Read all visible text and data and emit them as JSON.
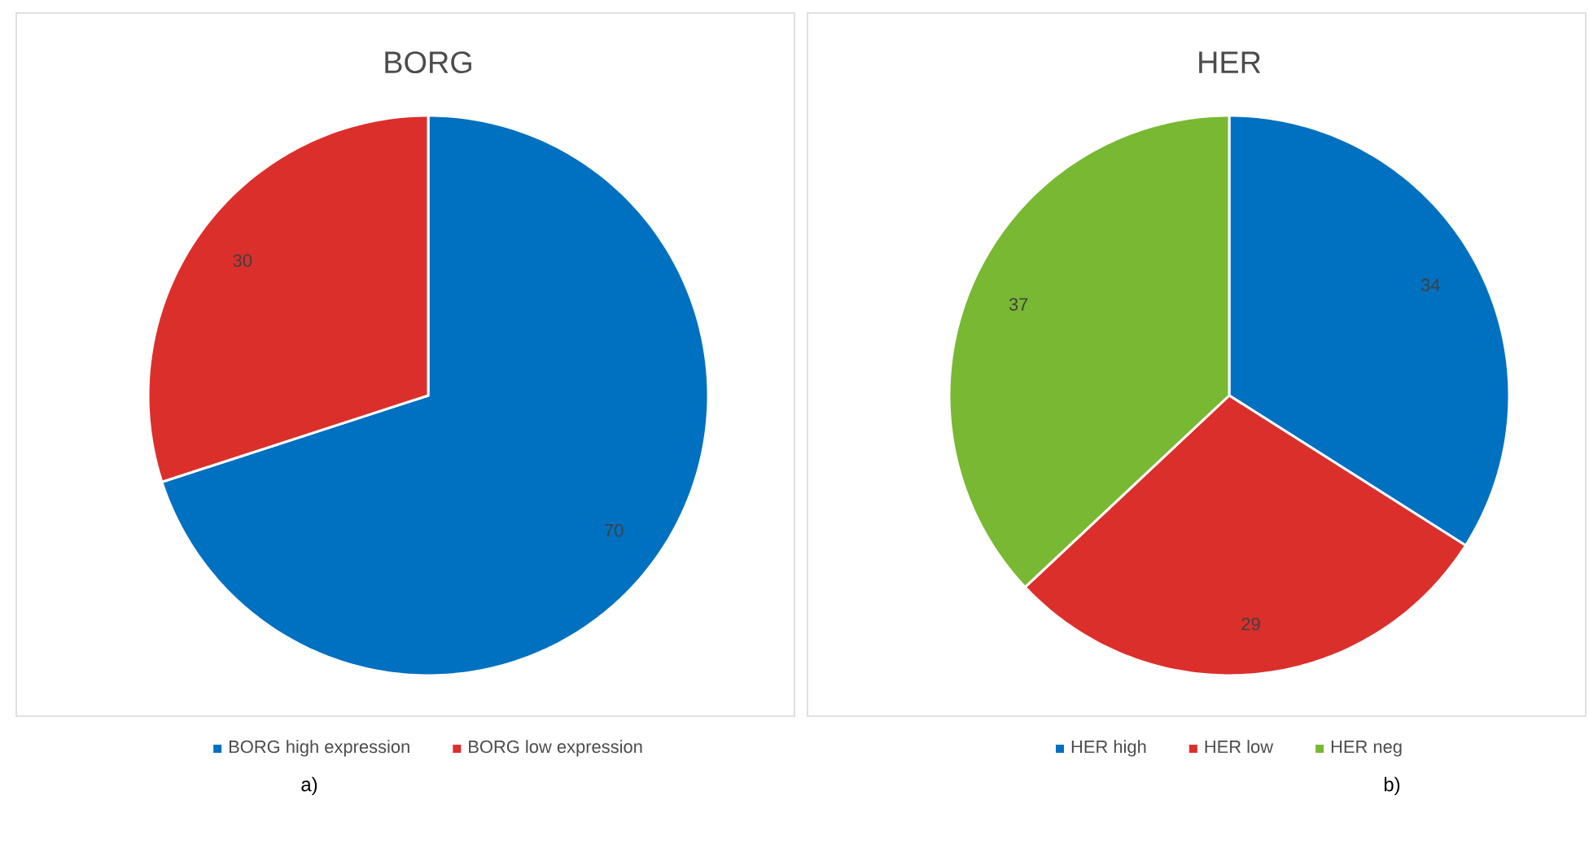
{
  "chart_data": [
    {
      "type": "pie",
      "title": "BORG",
      "categories": [
        "BORG high expression",
        "BORG low expression"
      ],
      "values": [
        70,
        30
      ],
      "colors": [
        "#0070c0",
        "#db2f2c"
      ],
      "data_labels": true,
      "legend": "bottom",
      "annotations": [
        "a)"
      ]
    },
    {
      "type": "pie",
      "title": "HER",
      "categories": [
        "HER high",
        "HER low",
        "HER neg"
      ],
      "values": [
        34,
        29,
        37
      ],
      "colors": [
        "#0070c0",
        "#db2f2c",
        "#78b833"
      ],
      "data_labels": true,
      "legend": "bottom",
      "annotations": [
        "b)"
      ]
    }
  ]
}
